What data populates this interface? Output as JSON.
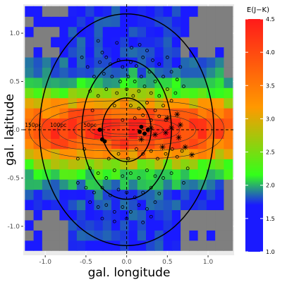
{
  "chart_data": {
    "type": "heatmap",
    "xlabel": "gal. longitude",
    "ylabel": "gal. latitude",
    "xlim": [
      -1.27,
      1.32
    ],
    "ylim": [
      -1.3,
      1.3
    ],
    "x_ticks": [
      -1.0,
      -0.5,
      0.0,
      0.5,
      1.0
    ],
    "y_ticks": [
      -1.0,
      -0.5,
      0.0,
      0.5,
      1.0
    ],
    "x_tick_labels": [
      "-1.0",
      "-0.5",
      "0.0",
      "0.5",
      "1.0"
    ],
    "y_tick_labels": [
      "-1.0",
      "-0.5",
      "0.0",
      "0.5",
      "1.0"
    ],
    "grid": true,
    "legend": {
      "title": "E(J−K)",
      "position": "right",
      "range": [
        1.0,
        4.5
      ],
      "ticks": [
        "1.0",
        "1.5",
        "2.0",
        "2.5",
        "3.0",
        "3.5",
        "4.0",
        "4.5"
      ],
      "colors": [
        "#1a1aff",
        "#33ff1a",
        "#ff9900",
        "#ff1a1a"
      ]
    },
    "heatmap": {
      "x_range": [
        -1.25,
        1.3
      ],
      "y_range": [
        -1.25,
        1.28
      ],
      "nx": 24,
      "ny": 24,
      "missing_color": "#7f7f7f"
    },
    "ellipses": [
      {
        "cx": 0.0,
        "cy": 0.0,
        "rx": 1.07,
        "ry": 1.2
      },
      {
        "cx": 0.0,
        "cy": 0.0,
        "rx": 0.55,
        "ry": 0.72
      },
      {
        "cx": 0.0,
        "cy": 0.0,
        "rx": 0.3,
        "ry": 0.33
      }
    ],
    "contour_labels": [
      "150pc",
      "100pc",
      "50pc"
    ],
    "reference_lines": {
      "x": 0.0,
      "y": 0.0
    },
    "filled_points": [
      {
        "x": -0.33,
        "y": 0.0
      },
      {
        "x": -0.27,
        "y": -0.12
      },
      {
        "x": -0.3,
        "y": -0.1
      },
      {
        "x": 0.16,
        "y": -0.02
      },
      {
        "x": 0.18,
        "y": 0.03
      },
      {
        "x": 0.26,
        "y": 0.0
      },
      {
        "x": 0.22,
        "y": -0.04
      }
    ],
    "star_points": [
      {
        "x": 0.5,
        "y": 0.12
      },
      {
        "x": 0.62,
        "y": 0.16
      },
      {
        "x": 0.66,
        "y": 0.05
      },
      {
        "x": 0.55,
        "y": 0.02
      },
      {
        "x": 0.48,
        "y": -0.03
      },
      {
        "x": 0.35,
        "y": -0.05
      },
      {
        "x": 0.72,
        "y": -0.18
      },
      {
        "x": 0.8,
        "y": -0.26
      },
      {
        "x": 0.64,
        "y": -0.08
      },
      {
        "x": 0.44,
        "y": -0.18
      },
      {
        "x": 0.18,
        "y": -0.1
      },
      {
        "x": 0.3,
        "y": 0.02
      }
    ],
    "open_points": [
      {
        "x": -0.35,
        "y": 0.92
      },
      {
        "x": -0.3,
        "y": 0.8
      },
      {
        "x": -0.25,
        "y": 0.75
      },
      {
        "x": -0.33,
        "y": 0.7
      },
      {
        "x": -0.2,
        "y": 0.68
      },
      {
        "x": -0.1,
        "y": 0.72
      },
      {
        "x": -0.05,
        "y": 0.65
      },
      {
        "x": 0.05,
        "y": 0.7
      },
      {
        "x": 0.12,
        "y": 0.66
      },
      {
        "x": 0.2,
        "y": 0.75
      },
      {
        "x": 0.25,
        "y": 0.82
      },
      {
        "x": 0.32,
        "y": 0.72
      },
      {
        "x": 0.4,
        "y": 0.68
      },
      {
        "x": -0.4,
        "y": 0.55
      },
      {
        "x": -0.28,
        "y": 0.58
      },
      {
        "x": -0.18,
        "y": 0.55
      },
      {
        "x": -0.08,
        "y": 0.5
      },
      {
        "x": 0.02,
        "y": 0.55
      },
      {
        "x": 0.1,
        "y": 0.5
      },
      {
        "x": 0.18,
        "y": 0.55
      },
      {
        "x": 0.28,
        "y": 0.6
      },
      {
        "x": 0.35,
        "y": 0.5
      },
      {
        "x": 0.45,
        "y": 0.55
      },
      {
        "x": 0.55,
        "y": 0.6
      },
      {
        "x": 0.62,
        "y": 0.52
      },
      {
        "x": -0.45,
        "y": 0.4
      },
      {
        "x": -0.35,
        "y": 0.35
      },
      {
        "x": -0.25,
        "y": 0.42
      },
      {
        "x": -0.12,
        "y": 0.38
      },
      {
        "x": 0.0,
        "y": 0.42
      },
      {
        "x": 0.08,
        "y": 0.35
      },
      {
        "x": 0.15,
        "y": 0.4
      },
      {
        "x": 0.22,
        "y": 0.45
      },
      {
        "x": 0.3,
        "y": 0.38
      },
      {
        "x": 0.4,
        "y": 0.35
      },
      {
        "x": 0.5,
        "y": 0.42
      },
      {
        "x": 0.6,
        "y": 0.38
      },
      {
        "x": 0.7,
        "y": 0.45
      },
      {
        "x": -0.15,
        "y": 0.25
      },
      {
        "x": 0.05,
        "y": 0.25
      },
      {
        "x": 0.15,
        "y": 0.22
      },
      {
        "x": 0.25,
        "y": 0.28
      },
      {
        "x": 0.35,
        "y": 0.2
      },
      {
        "x": 0.45,
        "y": 0.25
      },
      {
        "x": 0.55,
        "y": 0.3
      },
      {
        "x": 0.1,
        "y": 0.12
      },
      {
        "x": 0.2,
        "y": 0.15
      },
      {
        "x": 0.3,
        "y": 0.1
      },
      {
        "x": 0.4,
        "y": 0.14
      },
      {
        "x": -0.05,
        "y": 0.1
      },
      {
        "x": 0.12,
        "y": -0.2
      },
      {
        "x": 0.2,
        "y": -0.25
      },
      {
        "x": 0.3,
        "y": -0.22
      },
      {
        "x": 0.38,
        "y": -0.3
      },
      {
        "x": 0.48,
        "y": -0.25
      },
      {
        "x": 0.56,
        "y": -0.2
      },
      {
        "x": 0.62,
        "y": -0.28
      },
      {
        "x": 0.68,
        "y": -0.22
      },
      {
        "x": -0.1,
        "y": -0.25
      },
      {
        "x": 0.02,
        "y": -0.3
      },
      {
        "x": -0.45,
        "y": -0.4
      },
      {
        "x": -0.35,
        "y": -0.45
      },
      {
        "x": -0.25,
        "y": -0.5
      },
      {
        "x": -0.15,
        "y": -0.42
      },
      {
        "x": -0.05,
        "y": -0.48
      },
      {
        "x": 0.05,
        "y": -0.45
      },
      {
        "x": 0.15,
        "y": -0.5
      },
      {
        "x": 0.25,
        "y": -0.42
      },
      {
        "x": 0.35,
        "y": -0.48
      },
      {
        "x": 0.45,
        "y": -0.5
      },
      {
        "x": 0.55,
        "y": -0.45
      },
      {
        "x": -0.6,
        "y": -0.55
      },
      {
        "x": -0.5,
        "y": -0.6
      },
      {
        "x": -0.4,
        "y": -0.65
      },
      {
        "x": -0.3,
        "y": -0.6
      },
      {
        "x": -0.2,
        "y": -0.68
      },
      {
        "x": -0.1,
        "y": -0.62
      },
      {
        "x": 0.0,
        "y": -0.65
      },
      {
        "x": 0.1,
        "y": -0.7
      },
      {
        "x": 0.2,
        "y": -0.65
      },
      {
        "x": 0.3,
        "y": -0.6
      },
      {
        "x": 0.4,
        "y": -0.66
      },
      {
        "x": -0.45,
        "y": -0.75
      },
      {
        "x": -0.35,
        "y": -0.8
      },
      {
        "x": -0.25,
        "y": -0.78
      },
      {
        "x": -0.15,
        "y": -0.85
      },
      {
        "x": -0.05,
        "y": -0.8
      },
      {
        "x": 0.05,
        "y": -0.85
      },
      {
        "x": 0.15,
        "y": -0.78
      },
      {
        "x": 0.25,
        "y": -0.82
      },
      {
        "x": 0.35,
        "y": -0.75
      },
      {
        "x": -0.3,
        "y": -0.92
      },
      {
        "x": -0.15,
        "y": -0.95
      },
      {
        "x": 0.0,
        "y": -0.92
      },
      {
        "x": 0.2,
        "y": -0.96
      },
      {
        "x": 0.3,
        "y": -0.9
      },
      {
        "x": -0.55,
        "y": 0.75
      },
      {
        "x": -0.48,
        "y": 0.65
      },
      {
        "x": 0.5,
        "y": 0.75
      },
      {
        "x": 0.66,
        "y": 0.65
      },
      {
        "x": -0.6,
        "y": -0.3
      },
      {
        "x": -0.52,
        "y": -0.2
      },
      {
        "x": 0.75,
        "y": -0.4
      },
      {
        "x": 0.7,
        "y": -0.55
      },
      {
        "x": -0.42,
        "y": 0.2
      },
      {
        "x": 0.06,
        "y": 0.85
      },
      {
        "x": -0.12,
        "y": 0.9
      },
      {
        "x": 0.16,
        "y": 0.88
      },
      {
        "x": -0.22,
        "y": -0.3
      },
      {
        "x": 0.48,
        "y": 0.1
      }
    ]
  }
}
